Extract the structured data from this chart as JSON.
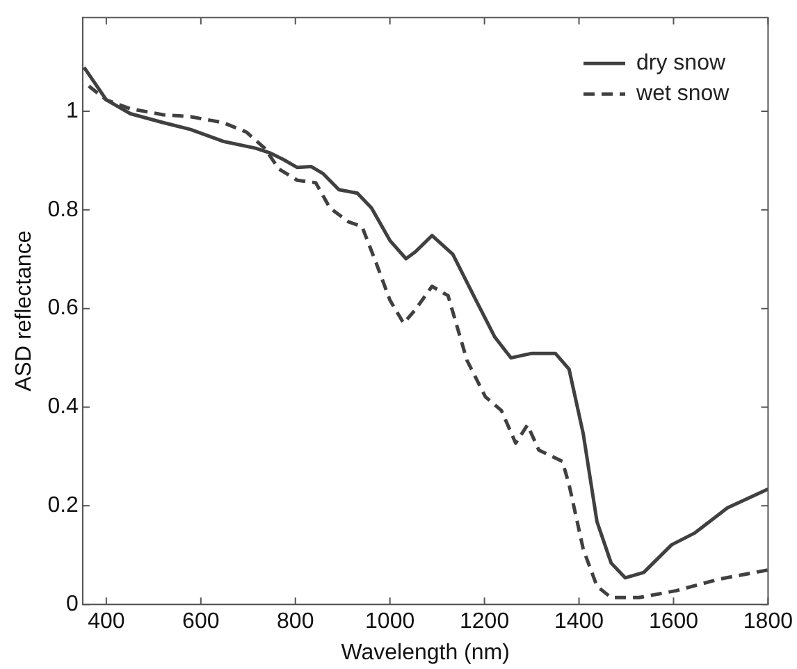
{
  "chart_data": {
    "type": "line",
    "xlabel": "Wavelength (nm)",
    "ylabel": "ASD reflectance",
    "xlim": [
      350,
      1800
    ],
    "xticks": [
      400,
      600,
      800,
      1000,
      1200,
      1400,
      1600,
      1800
    ],
    "ylim": [
      0,
      1.19
    ],
    "yticks": [
      0,
      0.2,
      0.4,
      0.6,
      0.8,
      1
    ],
    "grid": false,
    "legend": "top right",
    "marker": "none",
    "series": [
      {
        "name": "dry snow",
        "color": "#404040",
        "line_style": "solid",
        "x": [
          353,
          400,
          451,
          520,
          578,
          647,
          716,
          745,
          775,
          804,
          833,
          858,
          892,
          931,
          961,
          1000,
          1034,
          1054,
          1089,
          1133,
          1182,
          1222,
          1256,
          1300,
          1350,
          1379,
          1409,
          1438,
          1468,
          1498,
          1537,
          1596,
          1645,
          1714,
          1800
        ],
        "values": [
          1.089,
          1.023,
          0.995,
          0.977,
          0.963,
          0.939,
          0.925,
          0.916,
          0.902,
          0.886,
          0.888,
          0.874,
          0.841,
          0.834,
          0.804,
          0.738,
          0.701,
          0.715,
          0.748,
          0.71,
          0.617,
          0.542,
          0.5,
          0.509,
          0.509,
          0.477,
          0.346,
          0.168,
          0.084,
          0.054,
          0.065,
          0.121,
          0.145,
          0.196,
          0.234
        ]
      },
      {
        "name": "wet snow",
        "color": "#404040",
        "line_style": "dashed",
        "x": [
          363,
          400,
          451,
          520,
          578,
          647,
          696,
          735,
          765,
          804,
          843,
          873,
          912,
          941,
          971,
          1000,
          1029,
          1054,
          1089,
          1123,
          1163,
          1202,
          1236,
          1266,
          1291,
          1315,
          1365,
          1379,
          1409,
          1438,
          1468,
          1527,
          1606,
          1695,
          1800
        ],
        "values": [
          1.051,
          1.023,
          1.005,
          0.993,
          0.989,
          0.977,
          0.958,
          0.925,
          0.883,
          0.86,
          0.855,
          0.804,
          0.776,
          0.766,
          0.692,
          0.617,
          0.57,
          0.598,
          0.645,
          0.626,
          0.495,
          0.421,
          0.393,
          0.327,
          0.364,
          0.313,
          0.29,
          0.243,
          0.112,
          0.037,
          0.014,
          0.014,
          0.028,
          0.051,
          0.07
        ]
      }
    ]
  }
}
